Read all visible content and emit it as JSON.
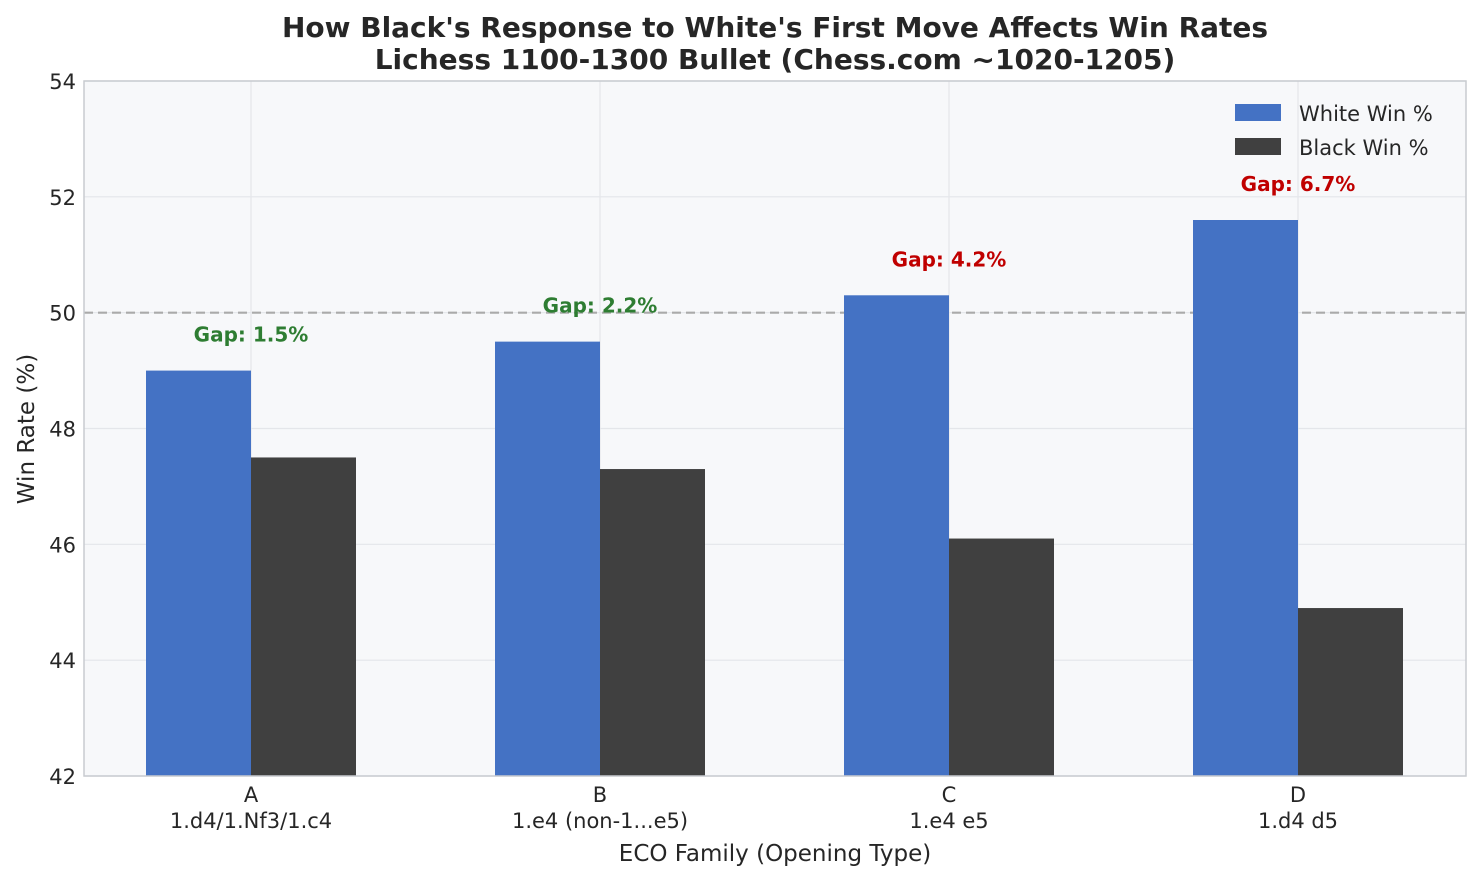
{
  "chart_data": {
    "type": "bar",
    "title_lines": [
      "How Black's Response to White's First Move Affects Win Rates",
      "Lichess 1100-1300 Bullet (Chess.com ~1020-1205)"
    ],
    "xlabel": "ECO Family (Opening Type)",
    "ylabel": "Win Rate (%)",
    "ylim": [
      42,
      54
    ],
    "yticks": [
      "42",
      "44",
      "46",
      "48",
      "50",
      "52",
      "54"
    ],
    "grid": true,
    "reference_line": 50,
    "legend_position": "top-right",
    "categories": [
      {
        "code": "A",
        "label": "1.d4/1.Nf3/1.c4"
      },
      {
        "code": "B",
        "label": "1.e4 (non-1...e5)"
      },
      {
        "code": "C",
        "label": "1.e4 e5"
      },
      {
        "code": "D",
        "label": "1.d4 d5"
      }
    ],
    "series": [
      {
        "name": "White Win %",
        "color": "#4472c4",
        "values": [
          49.0,
          49.5,
          50.3,
          51.6
        ]
      },
      {
        "name": "Black Win %",
        "color": "#404040",
        "values": [
          47.5,
          47.3,
          46.1,
          44.9
        ]
      }
    ],
    "annotations": [
      {
        "text": "Gap: 1.5%",
        "color": "#2e7d32"
      },
      {
        "text": "Gap: 2.2%",
        "color": "#2e7d32"
      },
      {
        "text": "Gap: 4.2%",
        "color": "#c00000"
      },
      {
        "text": "Gap: 6.7%",
        "color": "#c00000"
      }
    ]
  }
}
